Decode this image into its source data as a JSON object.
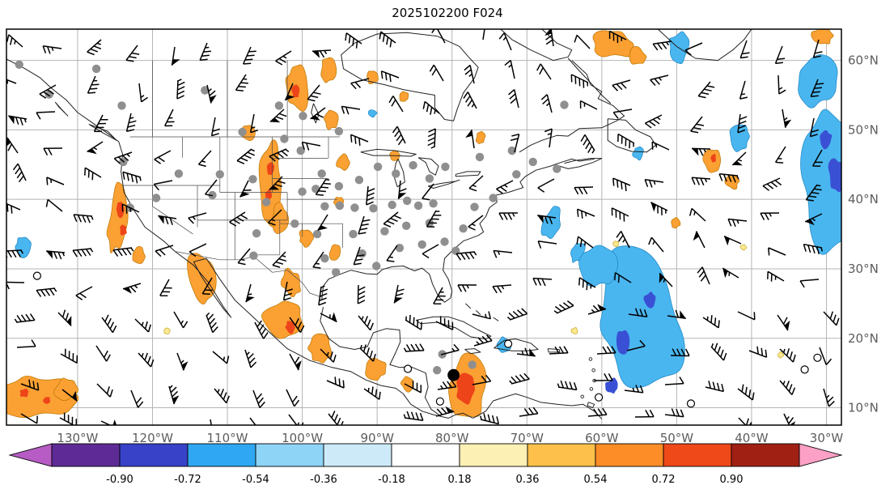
{
  "title": "2025102200 F024",
  "axes": {
    "lon_labels": [
      "130°W",
      "120°W",
      "110°W",
      "100°W",
      "90°W",
      "80°W",
      "70°W",
      "60°W",
      "50°W",
      "40°W",
      "30°W"
    ],
    "lon_values": [
      -130,
      -120,
      -110,
      -100,
      -90,
      -80,
      -70,
      -60,
      -50,
      -40,
      -30
    ],
    "lat_labels": [
      "60°N",
      "50°N",
      "40°N",
      "30°N",
      "20°N",
      "10°N"
    ],
    "lat_values": [
      60,
      50,
      40,
      30,
      20,
      10
    ]
  },
  "colorbar": {
    "tick_labels": [
      "-0.90",
      "-0.72",
      "-0.54",
      "-0.36",
      "-0.18",
      "0.18",
      "0.36",
      "0.54",
      "0.72",
      "0.90"
    ],
    "segment_colors": [
      "#5e2b96",
      "#3742c8",
      "#2fa7f2",
      "#8ed4f7",
      "#cdeaf8",
      "#ffffff",
      "#fcf0b4",
      "#fdc04a",
      "#fd8d27",
      "#ef4819",
      "#a02014"
    ],
    "extend_left_color": "#b65cc4",
    "extend_right_color": "#fda0c6"
  },
  "chart_data": {
    "type": "heatmap",
    "title": "2025102200 F024",
    "x_tick_labels": [
      "130°W",
      "120°W",
      "110°W",
      "100°W",
      "90°W",
      "80°W",
      "70°W",
      "60°W",
      "50°W",
      "40°W",
      "30°W"
    ],
    "y_tick_labels": [
      "10°N",
      "20°N",
      "30°N",
      "40°N",
      "50°N",
      "60°N"
    ],
    "colorbar_ticks": [
      -0.9,
      -0.72,
      -0.54,
      -0.36,
      -0.18,
      0.18,
      0.36,
      0.54,
      0.72,
      0.9
    ],
    "colorbar_colors": [
      "#b65cc4",
      "#5e2b96",
      "#3742c8",
      "#2fa7f2",
      "#8ed4f7",
      "#cdeaf8",
      "#ffffff",
      "#fcf0b4",
      "#fdc04a",
      "#fd8d27",
      "#ef4819",
      "#a02014",
      "#fda0c6"
    ],
    "map_extent": {
      "lon_west": -139.5,
      "lon_east": -28.0,
      "lat_south": 7.5,
      "lat_north": 64.5
    },
    "fill_colors": {
      "positive": "#fba033",
      "positive_core": "#ee4419",
      "negative": "#49b6ef",
      "negative_core": "#3a50d4",
      "weak": "#fbe98f"
    },
    "notes": "Shaded field (orange/red positive, blue negative) over a North America / Atlantic map with black wind barbs, gray station dots and one filled black station in the Caribbean.",
    "shaded_regions": [
      [
        -124.6,
        37.5,
        1.2,
        5.2,
        8,
        "positive"
      ],
      [
        -121.9,
        31.8,
        0.8,
        1.3,
        0,
        "positive"
      ],
      [
        -113.5,
        28.5,
        1.7,
        4.0,
        -12,
        "positive"
      ],
      [
        -104.3,
        42.5,
        1.5,
        5.6,
        0,
        "positive"
      ],
      [
        -103.0,
        37.2,
        1.0,
        2.0,
        0,
        "positive"
      ],
      [
        -99.5,
        34.5,
        0.9,
        1.3,
        0,
        "positive"
      ],
      [
        -95.6,
        32.3,
        0.8,
        1.1,
        0,
        "positive"
      ],
      [
        -101.5,
        28.0,
        1.2,
        1.9,
        -18,
        "positive"
      ],
      [
        -102.6,
        22.5,
        2.6,
        3.1,
        15,
        "positive"
      ],
      [
        -97.6,
        18.5,
        1.5,
        1.9,
        0,
        "positive"
      ],
      [
        -90.2,
        15.6,
        1.3,
        1.6,
        0,
        "positive"
      ],
      [
        -86.0,
        13.5,
        0.8,
        1.1,
        0,
        "positive"
      ],
      [
        -78.0,
        13.0,
        2.5,
        4.3,
        0,
        "positive"
      ],
      [
        -135.6,
        11.6,
        5.2,
        2.9,
        0,
        "positive"
      ],
      [
        -131.6,
        12.6,
        1.5,
        1.5,
        0,
        "positive"
      ],
      [
        -100.7,
        56.0,
        1.4,
        3.5,
        -8,
        "positive"
      ],
      [
        -96.2,
        51.5,
        0.9,
        1.3,
        0,
        "positive"
      ],
      [
        -107.2,
        49.6,
        0.8,
        1.1,
        0,
        "positive"
      ],
      [
        -96.6,
        58.6,
        1.0,
        1.7,
        0,
        "positive"
      ],
      [
        -90.6,
        57.6,
        0.7,
        1.0,
        0,
        "positive"
      ],
      [
        -86.4,
        54.8,
        0.6,
        0.8,
        0,
        "positive"
      ],
      [
        -58.6,
        62.3,
        2.7,
        1.9,
        18,
        "positive"
      ],
      [
        -55.2,
        60.6,
        1.1,
        1.3,
        0,
        "positive"
      ],
      [
        -45.2,
        45.6,
        1.2,
        1.9,
        0,
        "positive"
      ],
      [
        -42.6,
        42.6,
        0.9,
        1.1,
        0,
        "positive"
      ],
      [
        -30.5,
        63.5,
        1.4,
        1.3,
        0,
        "positive"
      ],
      [
        -87.6,
        46.4,
        0.7,
        0.7,
        0,
        "positive"
      ],
      [
        -95.2,
        39.6,
        0.6,
        0.8,
        0,
        "positive"
      ],
      [
        -94.6,
        45.3,
        0.8,
        1.1,
        0,
        "positive"
      ],
      [
        -76.2,
        48.9,
        0.6,
        0.8,
        0,
        "positive"
      ],
      [
        -50.2,
        36.6,
        0.6,
        0.7,
        0,
        "positive"
      ],
      [
        -55.2,
        22.5,
        5.6,
        9.3,
        -14,
        "negative"
      ],
      [
        -60.6,
        30.6,
        2.3,
        3.1,
        0,
        "negative"
      ],
      [
        -66.6,
        36.6,
        1.0,
        2.5,
        22,
        "negative"
      ],
      [
        -63.2,
        32.4,
        0.8,
        1.5,
        18,
        "negative"
      ],
      [
        -29.6,
        44.0,
        4.1,
        10.8,
        0,
        "negative"
      ],
      [
        -31.2,
        57.0,
        2.6,
        3.4,
        0,
        "negative"
      ],
      [
        -41.6,
        49.0,
        1.3,
        1.9,
        0,
        "negative"
      ],
      [
        -49.6,
        62.0,
        1.4,
        2.1,
        0,
        "negative"
      ],
      [
        -137.2,
        33.2,
        1.1,
        1.4,
        0,
        "negative"
      ],
      [
        -90.6,
        52.4,
        0.55,
        0.55,
        0,
        "negative"
      ],
      [
        -73.1,
        19.1,
        0.9,
        1.1,
        0,
        "negative"
      ],
      [
        -55.1,
        46.6,
        0.7,
        1.0,
        0,
        "negative"
      ],
      [
        -124.3,
        38.6,
        0.5,
        1.1,
        0,
        "positive_core"
      ],
      [
        -123.9,
        35.6,
        0.45,
        0.8,
        0,
        "positive_core"
      ],
      [
        -104.2,
        44.4,
        0.5,
        0.9,
        0,
        "positive_core"
      ],
      [
        -104.5,
        40.6,
        0.45,
        0.8,
        0,
        "positive_core"
      ],
      [
        -101.6,
        21.6,
        0.6,
        0.9,
        0,
        "positive_core"
      ],
      [
        -78.1,
        12.6,
        1.3,
        2.1,
        0,
        "positive_core"
      ],
      [
        -137.1,
        12.1,
        0.6,
        0.6,
        0,
        "positive_core"
      ],
      [
        -134.1,
        11.1,
        0.5,
        0.5,
        0,
        "positive_core"
      ],
      [
        -100.9,
        55.6,
        0.5,
        1.0,
        0,
        "positive_core"
      ],
      [
        -45.1,
        45.9,
        0.4,
        0.6,
        0,
        "positive_core"
      ],
      [
        -57.1,
        19.6,
        1.0,
        1.6,
        0,
        "negative_core"
      ],
      [
        -53.6,
        25.6,
        0.8,
        1.1,
        0,
        "negative_core"
      ],
      [
        -58.6,
        13.1,
        0.9,
        1.1,
        0,
        "negative_core"
      ],
      [
        -28.6,
        43.6,
        1.2,
        2.3,
        0,
        "negative_core"
      ],
      [
        -30.1,
        48.6,
        0.8,
        1.3,
        0,
        "negative_core"
      ],
      [
        -63.6,
        21.1,
        0.45,
        0.45,
        0,
        "weak"
      ],
      [
        -58.1,
        33.6,
        0.4,
        0.4,
        0,
        "weak"
      ],
      [
        -36.1,
        17.6,
        0.4,
        0.4,
        0,
        "weak"
      ],
      [
        -118.1,
        21.1,
        0.45,
        0.45,
        0,
        "weak"
      ],
      [
        -41.1,
        33.1,
        0.4,
        0.4,
        0,
        "weak"
      ]
    ],
    "stations_gray_dots": [
      [
        -137.8,
        59.4
      ],
      [
        -127.5,
        58.8
      ],
      [
        -133.8,
        55.1
      ],
      [
        -124.1,
        53.5
      ],
      [
        -113.0,
        55.7
      ],
      [
        -103.1,
        53.5
      ],
      [
        -99.9,
        52.0
      ],
      [
        -95.1,
        49.8
      ],
      [
        -108.0,
        49.7
      ],
      [
        -102.4,
        48.7
      ],
      [
        -100.2,
        47.0
      ],
      [
        -123.9,
        45.4
      ],
      [
        -123.0,
        38.8
      ],
      [
        -119.5,
        40.2
      ],
      [
        -116.5,
        43.7
      ],
      [
        -112.0,
        40.6
      ],
      [
        -111.0,
        43.6
      ],
      [
        -106.6,
        42.9
      ],
      [
        -104.8,
        39.6
      ],
      [
        -106.1,
        35.1
      ],
      [
        -106.5,
        31.9
      ],
      [
        -97.4,
        43.7
      ],
      [
        -95.1,
        41.9
      ],
      [
        -92.4,
        42.8
      ],
      [
        -89.9,
        44.7
      ],
      [
        -87.5,
        43.7
      ],
      [
        -85.2,
        44.9
      ],
      [
        -83.0,
        43.0
      ],
      [
        -80.9,
        44.7
      ],
      [
        -101.0,
        36.5
      ],
      [
        -98.0,
        35.0
      ],
      [
        -97.0,
        31.5
      ],
      [
        -95.5,
        29.5
      ],
      [
        -93.2,
        35.0
      ],
      [
        -92.0,
        32.2
      ],
      [
        -90.1,
        30.4
      ],
      [
        -89.0,
        35.4
      ],
      [
        -87.0,
        33.0
      ],
      [
        -86.1,
        36.2
      ],
      [
        -84.0,
        33.5
      ],
      [
        -83.0,
        36.6
      ],
      [
        -81.0,
        33.9
      ],
      [
        -79.5,
        32.6
      ],
      [
        -78.5,
        35.8
      ],
      [
        -97.0,
        39.0
      ],
      [
        -95.0,
        39.1
      ],
      [
        -93.0,
        38.8
      ],
      [
        -90.5,
        38.7
      ],
      [
        -88.0,
        39.2
      ],
      [
        -86.0,
        39.8
      ],
      [
        -84.5,
        39.1
      ],
      [
        -82.5,
        39.4
      ],
      [
        -100.0,
        41.1
      ],
      [
        -98.2,
        41.5
      ],
      [
        -77.0,
        38.9
      ],
      [
        -74.5,
        40.2
      ],
      [
        -71.4,
        43.6
      ],
      [
        -69.2,
        45.4
      ],
      [
        -66.0,
        44.4
      ],
      [
        -76.3,
        46.1
      ],
      [
        -72.0,
        47.0
      ],
      [
        -65.0,
        53.6
      ],
      [
        -81.3,
        17.7
      ],
      [
        -77.3,
        16.2
      ],
      [
        -82.0,
        15.4
      ]
    ],
    "open_circles": [
      [
        -135.4,
        29.0
      ],
      [
        -85.9,
        15.6
      ],
      [
        -81.6,
        10.9
      ],
      [
        -72.5,
        19.2
      ],
      [
        -60.4,
        11.5
      ],
      [
        -48.1,
        10.6
      ],
      [
        -32.9,
        15.5
      ],
      [
        -31.2,
        17.2
      ]
    ],
    "highlight_dot": {
      "lon": -79.8,
      "lat": 14.7
    },
    "wind_barbs": "black wind barbs on a regular grid covering the full domain; westerlies in mid/high latitudes, easterlies in the tropics"
  }
}
